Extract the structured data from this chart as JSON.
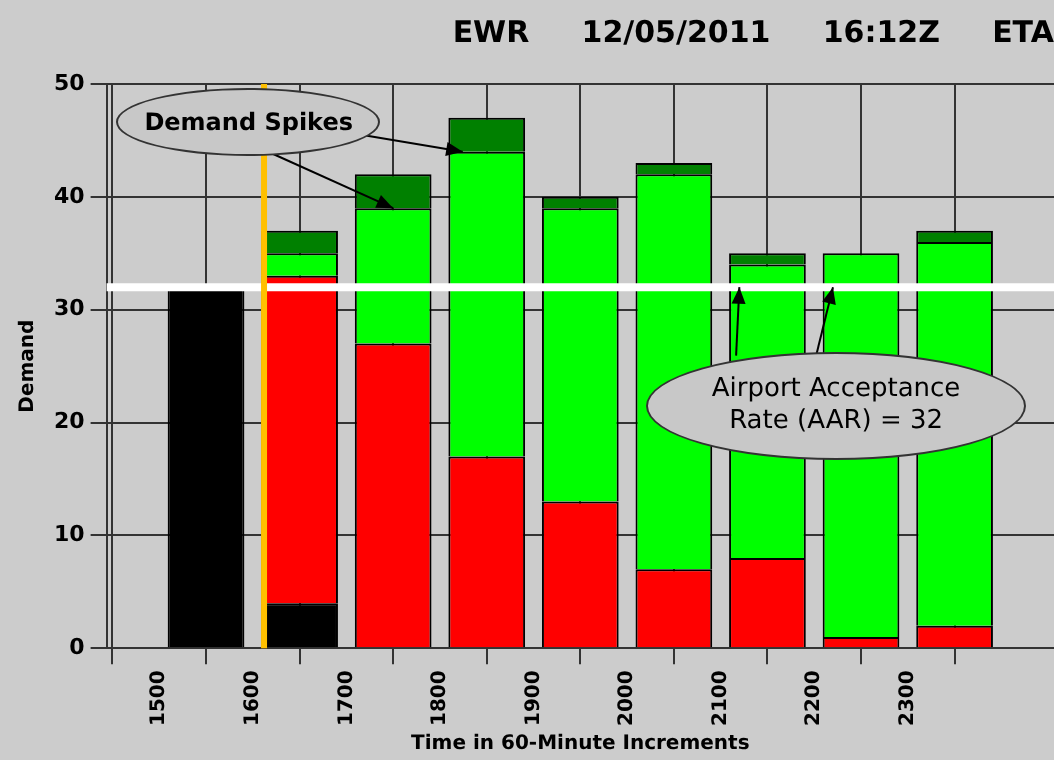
{
  "chart_data": {
    "type": "bar",
    "title": "EWR     12/05/2011     16:12Z     ETA",
    "xlabel": "Time in 60-Minute Increments",
    "ylabel": "Demand",
    "stacked": true,
    "x": [
      1550,
      1650,
      1750,
      1850,
      1950,
      2050,
      2150,
      2250,
      2350
    ],
    "series": [
      {
        "color": "#000000",
        "values": [
          32,
          4,
          0,
          0,
          0,
          0,
          0,
          0,
          0
        ]
      },
      {
        "color": "#ff0000",
        "values": [
          0,
          29,
          27,
          17,
          13,
          7,
          8,
          1,
          2
        ]
      },
      {
        "color": "#00ff00",
        "values": [
          0,
          2,
          12,
          27,
          26,
          35,
          26,
          34,
          34
        ]
      },
      {
        "color": "#008000",
        "values": [
          0,
          2,
          3,
          3,
          1,
          1,
          1,
          0,
          1
        ]
      }
    ],
    "xlim": [
      1500,
      2400
    ],
    "xticks": [
      1500,
      1600,
      1700,
      1800,
      1900,
      2000,
      2100,
      2200,
      2300
    ],
    "ylim": [
      0,
      50
    ],
    "yticks": [
      0,
      10,
      20,
      30,
      40,
      50
    ],
    "grid": true,
    "legend": false,
    "ref_lines": [
      {
        "axis": "y",
        "value": 32,
        "color": "#ffffff"
      },
      {
        "axis": "x",
        "value": 1612,
        "color": "#ffc000"
      }
    ],
    "annotations": [
      {
        "text": "Demand Spikes",
        "x": 1750,
        "y": 39
      },
      {
        "text": "Airport Acceptance Rate (AAR) = 32",
        "x": 2120,
        "y": 32
      }
    ]
  }
}
